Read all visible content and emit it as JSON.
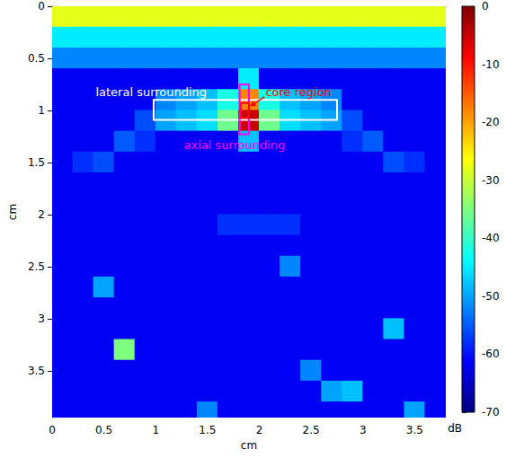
{
  "chart_data": {
    "type": "heatmap",
    "x_label": "cm",
    "y_label": "cm",
    "xlim": [
      0,
      3.8
    ],
    "ylim": [
      0,
      3.95
    ],
    "xticks": [
      0,
      0.5,
      1,
      1.5,
      2,
      2.5,
      3,
      3.5
    ],
    "yticks": [
      0,
      0.5,
      1,
      1.5,
      2,
      2.5,
      3,
      3.5
    ],
    "heatmap": {
      "x": [
        0.1,
        0.3,
        0.5,
        0.7,
        0.9,
        1.1,
        1.3,
        1.5,
        1.7,
        1.9,
        2.1,
        2.3,
        2.5,
        2.7,
        2.9,
        3.1,
        3.3,
        3.5,
        3.7
      ],
      "y": [
        0.1,
        0.3,
        0.5,
        0.7,
        0.9,
        1.1,
        1.3,
        1.5,
        1.7,
        1.9,
        2.1,
        2.3,
        2.5,
        2.7,
        2.9,
        3.1,
        3.3,
        3.5,
        3.7,
        3.9
      ],
      "cells": [
        [
          -28,
          -28,
          -28,
          -28,
          -28,
          -28,
          -28,
          -28,
          -28,
          -28,
          -28,
          -28,
          -28,
          -28,
          -28,
          -28,
          -28,
          -28,
          -28
        ],
        [
          -45,
          -45,
          -45,
          -45,
          -45,
          -45,
          -45,
          -45,
          -45,
          -45,
          -45,
          -45,
          -45,
          -45,
          -45,
          -45,
          -45,
          -45,
          -45
        ],
        [
          -52,
          -52,
          -52,
          -52,
          -52,
          -52,
          -52,
          -52,
          -52,
          -52,
          -52,
          -52,
          -52,
          -52,
          -52,
          -52,
          -52,
          -52,
          -52
        ],
        [
          -62,
          -62,
          -62,
          -62,
          -62,
          -62,
          -62,
          -62,
          -62,
          -45,
          -62,
          -62,
          -62,
          -62,
          -62,
          -62,
          -62,
          -62,
          -62
        ],
        [
          -62,
          -62,
          -62,
          -62,
          -62,
          -52,
          -50,
          -48,
          -42,
          -18,
          -42,
          -48,
          -50,
          -52,
          -62,
          -62,
          -62,
          -62,
          -62
        ],
        [
          -62,
          -62,
          -62,
          -62,
          -56,
          -50,
          -48,
          -46,
          -36,
          -5,
          -36,
          -46,
          -48,
          -50,
          -56,
          -62,
          -62,
          -62,
          -62
        ],
        [
          -62,
          -62,
          -62,
          -55,
          -58,
          -62,
          -62,
          -62,
          -62,
          -48,
          -62,
          -62,
          -62,
          -62,
          -58,
          -55,
          -62,
          -62,
          -62
        ],
        [
          -62,
          -58,
          -56,
          -62,
          -62,
          -62,
          -62,
          -62,
          -62,
          -62,
          -62,
          -62,
          -62,
          -62,
          -62,
          -62,
          -56,
          -58,
          -62
        ],
        [
          -62,
          -62,
          -62,
          -62,
          -62,
          -62,
          -62,
          -62,
          -62,
          -62,
          -62,
          -62,
          -62,
          -62,
          -62,
          -62,
          -62,
          -62,
          -62
        ],
        [
          -62,
          -62,
          -62,
          -62,
          -62,
          -62,
          -62,
          -62,
          -62,
          -62,
          -62,
          -62,
          -62,
          -62,
          -62,
          -62,
          -62,
          -62,
          -62
        ],
        [
          -62,
          -62,
          -62,
          -62,
          -62,
          -62,
          -62,
          -62,
          -58,
          -58,
          -58,
          -58,
          -62,
          -62,
          -62,
          -62,
          -62,
          -62,
          -62
        ],
        [
          -62,
          -62,
          -62,
          -62,
          -62,
          -62,
          -62,
          -62,
          -62,
          -62,
          -62,
          -62,
          -62,
          -62,
          -62,
          -62,
          -62,
          -62,
          -62
        ],
        [
          -62,
          -62,
          -62,
          -62,
          -62,
          -62,
          -62,
          -62,
          -62,
          -62,
          -62,
          -52,
          -62,
          -62,
          -62,
          -62,
          -62,
          -62,
          -62
        ],
        [
          -62,
          -62,
          -50,
          -62,
          -62,
          -62,
          -62,
          -62,
          -62,
          -62,
          -62,
          -62,
          -62,
          -62,
          -62,
          -62,
          -62,
          -62,
          -62
        ],
        [
          -62,
          -62,
          -62,
          -62,
          -62,
          -62,
          -62,
          -62,
          -62,
          -62,
          -62,
          -62,
          -62,
          -62,
          -62,
          -62,
          -62,
          -62,
          -62
        ],
        [
          -62,
          -62,
          -62,
          -62,
          -62,
          -62,
          -62,
          -62,
          -62,
          -62,
          -62,
          -62,
          -62,
          -62,
          -62,
          -62,
          -48,
          -62,
          -62
        ],
        [
          -62,
          -62,
          -62,
          -35,
          -62,
          -62,
          -62,
          -62,
          -62,
          -62,
          -62,
          -62,
          -62,
          -62,
          -62,
          -62,
          -62,
          -62,
          -62
        ],
        [
          -62,
          -62,
          -62,
          -62,
          -62,
          -62,
          -62,
          -62,
          -62,
          -62,
          -62,
          -62,
          -52,
          -62,
          -62,
          -62,
          -62,
          -62,
          -62
        ],
        [
          -62,
          -62,
          -62,
          -62,
          -62,
          -62,
          -62,
          -62,
          -62,
          -62,
          -62,
          -62,
          -62,
          -50,
          -48,
          -62,
          -62,
          -62,
          -62
        ],
        [
          -62,
          -62,
          -62,
          -62,
          -62,
          -62,
          -62,
          -52,
          -62,
          -62,
          -62,
          -62,
          -62,
          -62,
          -62,
          -62,
          -62,
          -50,
          -62
        ]
      ]
    },
    "colorbar": {
      "range": [
        -70,
        0
      ],
      "ticks": [
        0,
        -10,
        -20,
        -30,
        -40,
        -50,
        -60,
        -70
      ],
      "label": "dB",
      "colors": [
        "#00007f",
        "#0000ff",
        "#007fff",
        "#00ffff",
        "#7fff7f",
        "#ffff00",
        "#ff7f00",
        "#ff0000",
        "#7f0000"
      ]
    },
    "annotations": [
      {
        "text": "lateral surrounding",
        "color": "#ffffff",
        "x": [
          0.98,
          2.75
        ],
        "y": [
          0.9,
          1.09
        ]
      },
      {
        "text": "axial surrounding",
        "color": "#ff00ff",
        "x": [
          1.81,
          1.9
        ],
        "y": [
          0.75,
          1.23
        ]
      },
      {
        "text": "core region",
        "color": "#ff0000",
        "x": [
          1.82,
          1.9
        ],
        "y": [
          0.93,
          1.07
        ]
      }
    ]
  }
}
